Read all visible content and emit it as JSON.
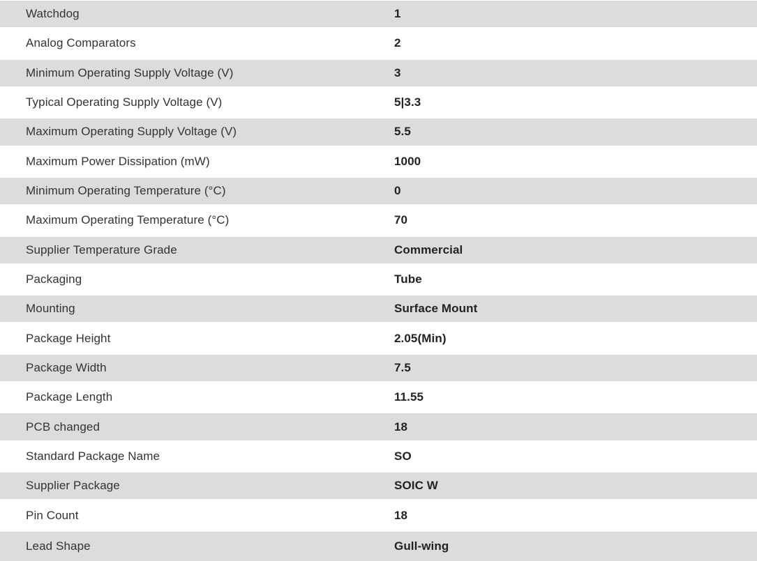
{
  "table": {
    "name": "product-specifications",
    "rows": [
      {
        "label": "Watchdog",
        "value": "1"
      },
      {
        "label": "Analog Comparators",
        "value": "2"
      },
      {
        "label": "Minimum Operating Supply Voltage (V)",
        "value": "3"
      },
      {
        "label": "Typical Operating Supply Voltage (V)",
        "value": "5|3.3"
      },
      {
        "label": "Maximum Operating Supply Voltage (V)",
        "value": "5.5"
      },
      {
        "label": "Maximum Power Dissipation (mW)",
        "value": "1000"
      },
      {
        "label": "Minimum Operating Temperature (°C)",
        "value": "0"
      },
      {
        "label": "Maximum Operating Temperature (°C)",
        "value": "70"
      },
      {
        "label": "Supplier Temperature Grade",
        "value": "Commercial"
      },
      {
        "label": "Packaging",
        "value": "Tube"
      },
      {
        "label": "Mounting",
        "value": "Surface Mount"
      },
      {
        "label": "Package Height",
        "value": "2.05(Min)"
      },
      {
        "label": "Package Width",
        "value": "7.5"
      },
      {
        "label": "Package Length",
        "value": "11.55"
      },
      {
        "label": "PCB changed",
        "value": "18"
      },
      {
        "label": "Standard Package Name",
        "value": "SO"
      },
      {
        "label": "Supplier Package",
        "value": "SOIC W"
      },
      {
        "label": "Pin Count",
        "value": "18"
      },
      {
        "label": "Lead Shape",
        "value": "Gull-wing"
      }
    ],
    "colors": {
      "row_alt_bg": "#dcdcdc",
      "row_bg": "#ffffff",
      "label_text": "#333333",
      "value_text": "#222222"
    }
  }
}
